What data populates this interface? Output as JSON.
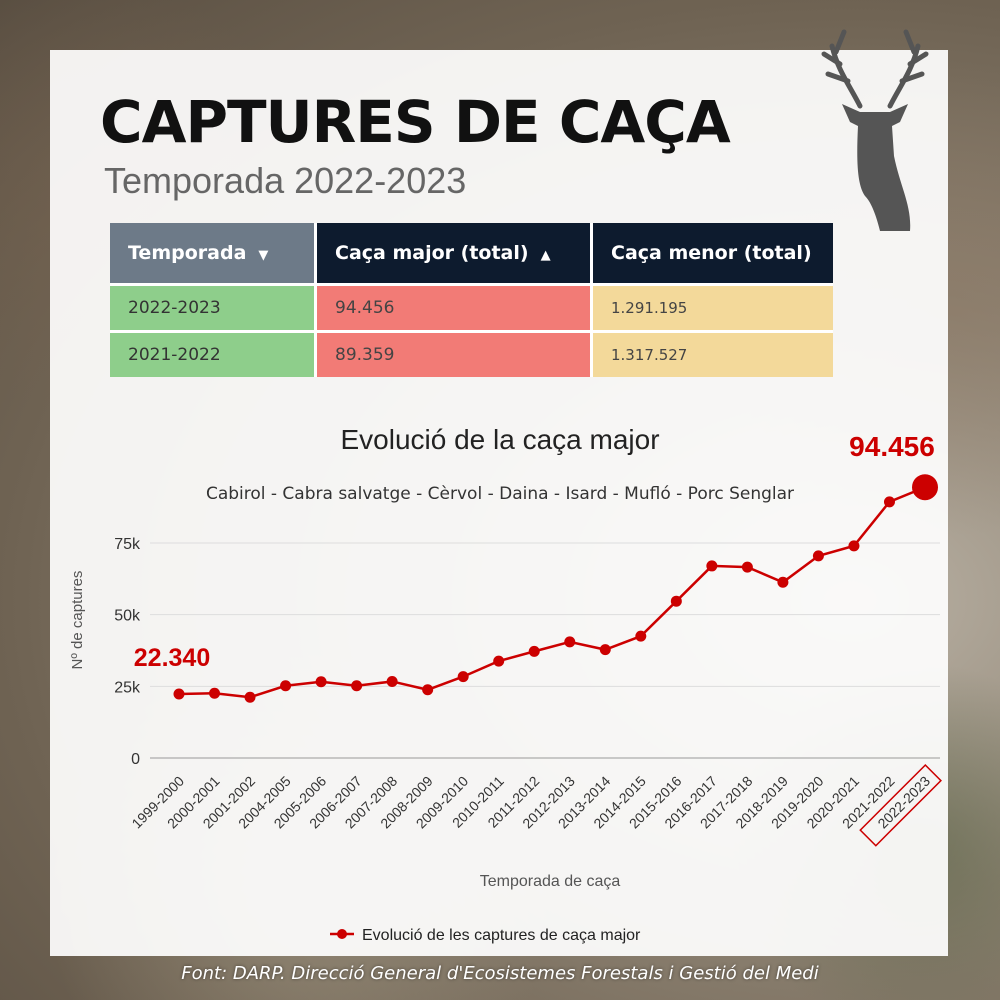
{
  "title": "CAPTURES DE CAÇA",
  "subtitle": "Temporada 2022-2023",
  "table": {
    "headers": [
      "Temporada",
      "Caça major (total)",
      "Caça menor (total)"
    ],
    "rows": [
      [
        "2022-2023",
        "94.456",
        "1.291.195"
      ],
      [
        "2021-2022",
        "89.359",
        "1.317.527"
      ]
    ],
    "colors": {
      "season": "#8ece8b",
      "major": "#f27b76",
      "minor": "#f3d99a",
      "header_dark": "#0d1b2e",
      "header_gray": "#6d7a88"
    }
  },
  "chart_data": {
    "type": "line",
    "title": "Evolució de la caça major",
    "subtitle": "Cabirol - Cabra salvatge - Cèrvol - Daina - Isard - Mufló - Porc Senglar",
    "xlabel": "Temporada de caça",
    "ylabel": "Nº de captures",
    "ylim": [
      0,
      87500
    ],
    "yticks": [
      0,
      25000,
      50000,
      75000
    ],
    "ytick_labels": [
      "0",
      "25k",
      "50k",
      "75k"
    ],
    "categories": [
      "1999-2000",
      "2000-2001",
      "2001-2002",
      "2004-2005",
      "2005-2006",
      "2006-2007",
      "2007-2008",
      "2008-2009",
      "2009-2010",
      "2010-2011",
      "2011-2012",
      "2012-2013",
      "2013-2014",
      "2014-2015",
      "2015-2016",
      "2016-2017",
      "2017-2018",
      "2018-2019",
      "2019-2020",
      "2020-2021",
      "2021-2022",
      "2022-2023"
    ],
    "series": [
      {
        "name": "Evolució de les captures de caça major",
        "values": [
          22340,
          22600,
          21200,
          25200,
          26600,
          25200,
          26700,
          23800,
          28400,
          33800,
          37200,
          40500,
          37800,
          42500,
          54700,
          67000,
          66600,
          61300,
          70500,
          74000,
          89359,
          94456
        ]
      }
    ],
    "annotations": {
      "first": "22.340",
      "last": "94.456"
    },
    "highlighted_category": "2022-2023",
    "grid": true,
    "legend_position": "bottom",
    "color": "#cc0000"
  },
  "source": "Font: DARP. Direcció General d'Ecosistemes Forestals i Gestió del Medi"
}
